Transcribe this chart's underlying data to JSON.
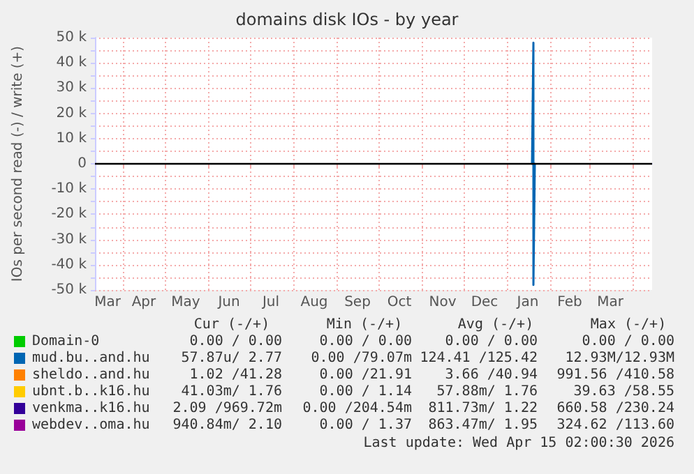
{
  "chart_data": {
    "type": "line",
    "title": "domains disk IOs - by year",
    "ylabel": "IOs per second read (-) / write (+)",
    "xlim": [
      "2025-03-12",
      "2026-04-15"
    ],
    "xticks": [
      {
        "value": "2025-03-21",
        "label": "Mar"
      },
      {
        "value": "2025-04-01",
        "label": null
      },
      {
        "value": "2025-04-16",
        "label": "Apr"
      },
      {
        "value": "2025-05-01",
        "label": null
      },
      {
        "value": "2025-05-16",
        "label": "May"
      },
      {
        "value": "2025-06-01",
        "label": null
      },
      {
        "value": "2025-06-16",
        "label": "Jun"
      },
      {
        "value": "2025-07-01",
        "label": null
      },
      {
        "value": "2025-07-16",
        "label": "Jul"
      },
      {
        "value": "2025-08-01",
        "label": null
      },
      {
        "value": "2025-08-16",
        "label": "Aug"
      },
      {
        "value": "2025-09-01",
        "label": null
      },
      {
        "value": "2025-09-16",
        "label": "Sep"
      },
      {
        "value": "2025-10-01",
        "label": null
      },
      {
        "value": "2025-10-16",
        "label": "Oct"
      },
      {
        "value": "2025-11-01",
        "label": null
      },
      {
        "value": "2025-11-16",
        "label": "Nov"
      },
      {
        "value": "2025-12-01",
        "label": null
      },
      {
        "value": "2025-12-16",
        "label": "Dec"
      },
      {
        "value": "2026-01-01",
        "label": null
      },
      {
        "value": "2026-01-16",
        "label": "Jan"
      },
      {
        "value": "2026-02-01",
        "label": null
      },
      {
        "value": "2026-02-15",
        "label": "Feb"
      },
      {
        "value": "2026-03-01",
        "label": null
      },
      {
        "value": "2026-03-16",
        "label": "Mar"
      },
      {
        "value": "2026-04-01",
        "label": null
      }
    ],
    "ylim": [
      -50000,
      50000
    ],
    "yticks": [
      {
        "value": -50000,
        "label": "-50 k"
      },
      {
        "value": -45000,
        "label": null
      },
      {
        "value": -40000,
        "label": "-40 k"
      },
      {
        "value": -35000,
        "label": null
      },
      {
        "value": -30000,
        "label": "-30 k"
      },
      {
        "value": -25000,
        "label": null
      },
      {
        "value": -20000,
        "label": "-20 k"
      },
      {
        "value": -15000,
        "label": null
      },
      {
        "value": -10000,
        "label": "-10 k"
      },
      {
        "value": -5000,
        "label": null
      },
      {
        "value": 0,
        "label": "0"
      },
      {
        "value": 5000,
        "label": null
      },
      {
        "value": 10000,
        "label": "10 k"
      },
      {
        "value": 15000,
        "label": null
      },
      {
        "value": 20000,
        "label": "20 k"
      },
      {
        "value": 25000,
        "label": null
      },
      {
        "value": 30000,
        "label": "30 k"
      },
      {
        "value": 35000,
        "label": null
      },
      {
        "value": 40000,
        "label": "40 k"
      },
      {
        "value": 45000,
        "label": null
      },
      {
        "value": 50000,
        "label": "50 k"
      }
    ],
    "grid": true,
    "legend": "bottom left",
    "marker": "none",
    "line_style": "solid",
    "ref_lines": [
      {
        "axis": "y",
        "value": 0,
        "color": "#000000"
      }
    ],
    "series": [
      {
        "name": "Domain-0",
        "color": "#00cc00"
      },
      {
        "name": "mud.bu..and.hu",
        "color": "#0066b3",
        "x": [
          "2026-01-19",
          "2026-01-20",
          "2026-01-20",
          "2026-01-21"
        ],
        "values": [
          0,
          48000,
          -48000,
          0
        ]
      },
      {
        "name": "sheldo..and.hu",
        "color": "#ff8000"
      },
      {
        "name": "ubnt.b..k16.hu",
        "color": "#ffcc00"
      },
      {
        "name": "venkma..k16.hu",
        "color": "#330099"
      },
      {
        "name": "webdev..oma.hu",
        "color": "#990099"
      }
    ],
    "annotations": [
      "Cur (-/+)",
      "Min (-/+)",
      "Avg (-/+)",
      "Max (-/+)",
      "0.00 / 0.00",
      "0.00 / 0.00",
      "0.00 / 0.00",
      "0.00 / 0.00",
      "57.87u/ 2.77",
      "0.00 /79.07m",
      "124.41 /125.42",
      "12.93M/12.93M",
      "1.02 /41.28",
      "0.00 /21.91",
      "3.66 /40.94",
      "991.56 /410.58",
      "41.03m/ 1.76",
      "0.00 / 1.14",
      "57.88m/ 1.76",
      "39.63 /58.55",
      "2.09 /969.72m",
      "0.00 /204.54m",
      "811.73m/ 1.22",
      "660.58 /230.24",
      "940.84m/ 2.10",
      "0.00 / 1.37",
      "863.47m/ 1.95",
      "324.62 /113.60",
      "Last update: Wed Apr 15 02:00:30 2026"
    ]
  }
}
